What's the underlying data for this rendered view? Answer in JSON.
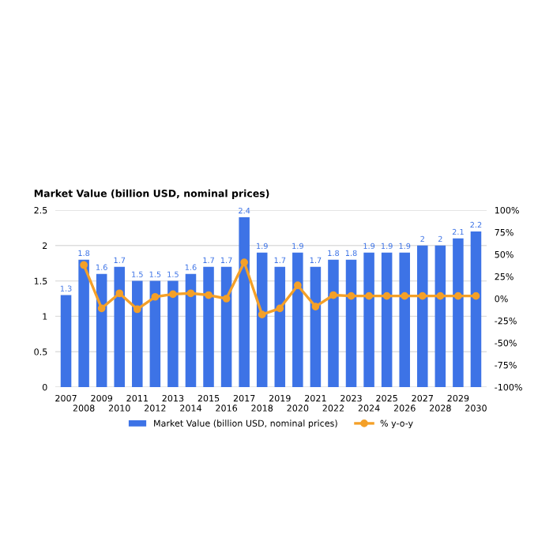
{
  "chart_data": {
    "type": "bar",
    "title": "Market Value (billion USD, nominal prices)",
    "categories": [
      "2007",
      "2008",
      "2009",
      "2010",
      "2011",
      "2012",
      "2013",
      "2014",
      "2015",
      "2016",
      "2017",
      "2018",
      "2019",
      "2020",
      "2021",
      "2022",
      "2023",
      "2024",
      "2025",
      "2026",
      "2027",
      "2028",
      "2029",
      "2030"
    ],
    "series": [
      {
        "name": "Market Value (billion USD, nominal prices)",
        "color": "#3d73e6",
        "values": [
          1.3,
          1.8,
          1.6,
          1.7,
          1.5,
          1.5,
          1.5,
          1.6,
          1.7,
          1.7,
          2.4,
          1.9,
          1.7,
          1.9,
          1.7,
          1.8,
          1.8,
          1.9,
          1.9,
          1.9,
          2,
          2,
          2.1,
          2.2
        ],
        "value_labels": [
          "1.3",
          "1.8",
          "1.6",
          "1.7",
          "1.5",
          "1.5",
          "1.5",
          "1.6",
          "1.7",
          "1.7",
          "2.4",
          "1.9",
          "1.7",
          "1.9",
          "1.7",
          "1.8",
          "1.8",
          "1.9",
          "1.9",
          "1.9",
          "2",
          "2",
          "2.1",
          "2.2"
        ]
      },
      {
        "name": "% y-o-y",
        "type": "line",
        "axis": "y2",
        "color": "#f4a028",
        "marker": "circle",
        "values": [
          null,
          38,
          -11,
          6,
          -12,
          2,
          5,
          6,
          4,
          0,
          41,
          -18,
          -11,
          15,
          -9,
          4,
          3,
          3,
          3,
          3,
          3,
          3,
          3,
          3
        ]
      }
    ],
    "ylim": [
      0,
      2.5
    ],
    "yticks": [
      0,
      0.5,
      1,
      1.5,
      2,
      2.5
    ],
    "y2lim": [
      -100,
      100
    ],
    "y2ticks": [
      {
        "value": -100,
        "label": "-100%"
      },
      {
        "value": -75,
        "label": "-75%"
      },
      {
        "value": -50,
        "label": "-50%"
      },
      {
        "value": -25,
        "label": "-25%"
      },
      {
        "value": 0,
        "label": "0%"
      },
      {
        "value": 25,
        "label": "25%"
      },
      {
        "value": 50,
        "label": "50%"
      },
      {
        "value": 75,
        "label": "75%"
      },
      {
        "value": 100,
        "label": "100%"
      }
    ],
    "grid": "y",
    "legend": "bottom"
  }
}
